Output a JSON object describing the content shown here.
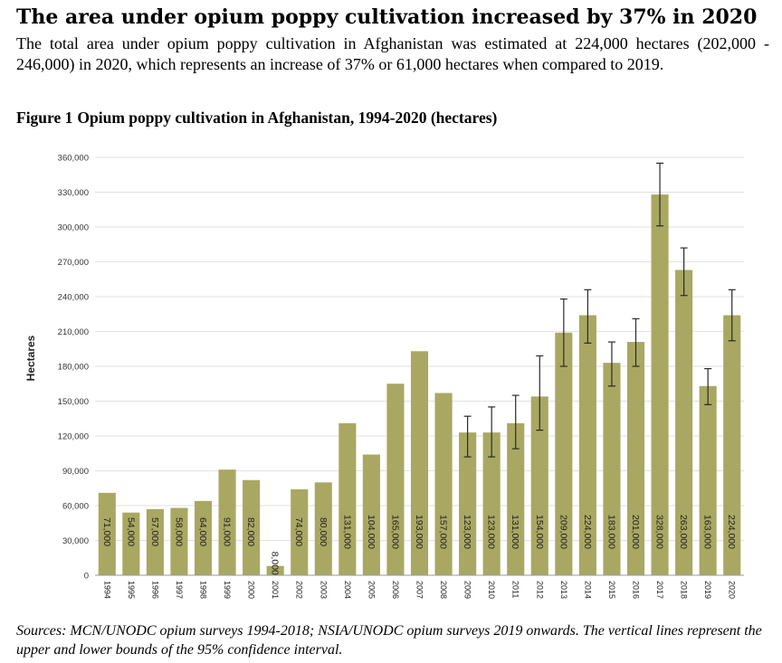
{
  "header": {
    "headline": "The area under opium poppy cultivation increased by 37% in 2020",
    "intro": "The total area under opium poppy cultivation in Afghanistan was estimated at 224,000 hectares (202,000 - 246,000) in 2020, which represents an increase of 37% or 61,000 hectares when compared to 2019."
  },
  "figure": {
    "number_label": "Figure 1",
    "caption": "Opium poppy cultivation in Afghanistan, 1994-2020 (hectares)"
  },
  "chart_data": {
    "type": "bar",
    "ylabel": "Hectares",
    "xlabel": "",
    "ylim": [
      0,
      360000
    ],
    "yticks": [
      0,
      30000,
      60000,
      90000,
      120000,
      150000,
      180000,
      210000,
      240000,
      270000,
      300000,
      330000,
      360000
    ],
    "ytick_labels": [
      "0",
      "30,000",
      "60,000",
      "90,000",
      "120,000",
      "150,000",
      "180,000",
      "210,000",
      "240,000",
      "270,000",
      "300,000",
      "330,000",
      "360,000"
    ],
    "grid": true,
    "bar_color": "#a8a862",
    "categories": [
      "1994",
      "1995",
      "1996",
      "1997",
      "1998",
      "1999",
      "2000",
      "2001",
      "2002",
      "2003",
      "2004",
      "2005",
      "2006",
      "2007",
      "2008",
      "2009",
      "2010",
      "2011",
      "2012",
      "2013",
      "2014",
      "2015",
      "2016",
      "2017",
      "2018",
      "2019",
      "2020"
    ],
    "values": [
      71000,
      54000,
      57000,
      58000,
      64000,
      91000,
      82000,
      8000,
      74000,
      80000,
      131000,
      104000,
      165000,
      193000,
      157000,
      123000,
      123000,
      131000,
      154000,
      209000,
      224000,
      183000,
      201000,
      328000,
      263000,
      163000,
      224000
    ],
    "labels": [
      "71,000",
      "54,000",
      "57,000",
      "58,000",
      "64,000",
      "91,000",
      "82,000",
      "8,000",
      "74,000",
      "80,000",
      "131,000",
      "104,000",
      "165,000",
      "193,000",
      "157,000",
      "123,000",
      "123,000",
      "131,000",
      "154,000",
      "209,000",
      "224,000",
      "183,000",
      "201,000",
      "328,000",
      "263,000",
      "163,000",
      "224,000"
    ],
    "error_bars": [
      null,
      null,
      null,
      null,
      null,
      null,
      null,
      null,
      null,
      null,
      null,
      null,
      null,
      null,
      null,
      [
        102000,
        137000
      ],
      [
        102000,
        145000
      ],
      [
        109000,
        155000
      ],
      [
        125000,
        189000
      ],
      [
        180000,
        238000
      ],
      [
        200000,
        246000
      ],
      [
        163000,
        201000
      ],
      [
        180000,
        221000
      ],
      [
        301000,
        355000
      ],
      [
        241000,
        282000
      ],
      [
        147000,
        178000
      ],
      [
        202000,
        246000
      ]
    ]
  },
  "source": {
    "text": "Sources: MCN/UNODC opium surveys 1994-2018; NSIA/UNODC opium surveys 2019 onwards. The vertical lines represent the upper and lower bounds of the 95% confidence interval."
  }
}
